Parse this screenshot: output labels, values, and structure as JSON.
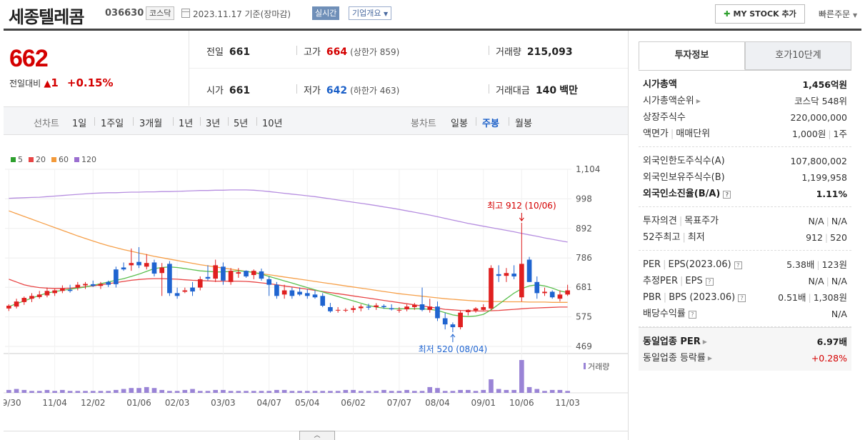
{
  "header": {
    "company": "세종텔레콤",
    "code": "036630",
    "market": "코스닥",
    "date": "2023.11.17 기준(장마감)",
    "realtime": "실시간",
    "overview": "기업개요",
    "mystock": "MY STOCK 추가",
    "quick_order": "빠른주문"
  },
  "price": {
    "current": "662",
    "change_label": "전일대비",
    "change_value": "1",
    "change_pct": "+0.15%"
  },
  "stats": {
    "prev_label": "전일",
    "prev": "661",
    "high_label": "고가",
    "high": "664",
    "upper_limit": "(상한가 859)",
    "volume_label": "거래량",
    "volume": "215,093",
    "open_label": "시가",
    "open": "661",
    "low_label": "저가",
    "low": "642",
    "lower_limit": "(하한가 463)",
    "amount_label": "거래대금",
    "amount": "140",
    "amount_unit": "백만"
  },
  "range_bar": {
    "line_label": "선차트",
    "ranges": [
      "1일",
      "1주일",
      "3개월",
      "1년",
      "3년",
      "5년",
      "10년"
    ],
    "candle_label": "봉차트",
    "candles": [
      "일봉",
      "주봉",
      "월봉"
    ],
    "active_candle": "주봉"
  },
  "chart_data": {
    "type": "candlestick",
    "legend": [
      {
        "name": "5",
        "color": "#2ea02e"
      },
      {
        "name": "20",
        "color": "#e84545"
      },
      {
        "name": "60",
        "color": "#f39a3a"
      },
      {
        "name": "120",
        "color": "#9b6fd0"
      }
    ],
    "y_ticks": [
      "1,104",
      "998",
      "892",
      "786",
      "681",
      "575",
      "469"
    ],
    "ylim": [
      469,
      1104
    ],
    "x_labels": [
      "09/30",
      "11/04",
      "12/02",
      "01/06",
      "02/03",
      "03/03",
      "04/07",
      "05/04",
      "06/02",
      "07/07",
      "08/04",
      "09/01",
      "10/06",
      "11/03"
    ],
    "high_annotation": "최고 912 (10/06)",
    "low_annotation": "최저 520 (08/04)",
    "volume_label": "거래량",
    "candles": [
      [
        605,
        620,
        596,
        615
      ],
      [
        612,
        640,
        605,
        630
      ],
      [
        628,
        648,
        618,
        643
      ],
      [
        640,
        660,
        628,
        650
      ],
      [
        646,
        668,
        640,
        655
      ],
      [
        652,
        680,
        645,
        668
      ],
      [
        660,
        675,
        650,
        670
      ],
      [
        668,
        688,
        660,
        676
      ],
      [
        672,
        690,
        662,
        668
      ],
      [
        680,
        700,
        670,
        690
      ],
      [
        688,
        700,
        675,
        693
      ],
      [
        692,
        705,
        682,
        686
      ],
      [
        686,
        700,
        675,
        693
      ],
      [
        700,
        705,
        682,
        690
      ],
      [
        745,
        755,
        680,
        692
      ],
      [
        752,
        770,
        740,
        745
      ],
      [
        760,
        820,
        740,
        768
      ],
      [
        772,
        825,
        750,
        760
      ],
      [
        755,
        800,
        745,
        768
      ],
      [
        770,
        780,
        720,
        730
      ],
      [
        732,
        768,
        650,
        752
      ],
      [
        765,
        775,
        650,
        660
      ],
      [
        660,
        680,
        640,
        650
      ],
      [
        665,
        680,
        660,
        670
      ],
      [
        680,
        700,
        650,
        666
      ],
      [
        680,
        720,
        670,
        710
      ],
      [
        718,
        760,
        705,
        712
      ],
      [
        712,
        780,
        700,
        760
      ],
      [
        755,
        770,
        690,
        705
      ],
      [
        700,
        750,
        690,
        740
      ],
      [
        730,
        750,
        715,
        735
      ],
      [
        740,
        742,
        715,
        720
      ],
      [
        725,
        745,
        710,
        740
      ],
      [
        738,
        748,
        705,
        712
      ],
      [
        710,
        720,
        650,
        690
      ],
      [
        690,
        700,
        640,
        650
      ],
      [
        655,
        690,
        640,
        670
      ],
      [
        670,
        680,
        640,
        650
      ],
      [
        665,
        680,
        650,
        655
      ],
      [
        660,
        675,
        640,
        650
      ],
      [
        655,
        670,
        640,
        645
      ],
      [
        650,
        660,
        610,
        615
      ],
      [
        610,
        625,
        590,
        595
      ],
      [
        600,
        610,
        590,
        600
      ],
      [
        598,
        606,
        592,
        600
      ],
      [
        600,
        615,
        590,
        606
      ],
      [
        606,
        620,
        595,
        612
      ],
      [
        612,
        622,
        600,
        608
      ],
      [
        610,
        624,
        600,
        616
      ],
      [
        614,
        620,
        604,
        610
      ],
      [
        606,
        620,
        598,
        602
      ],
      [
        598,
        610,
        590,
        600
      ],
      [
        602,
        620,
        595,
        612
      ],
      [
        610,
        625,
        600,
        618
      ],
      [
        620,
        680,
        595,
        600
      ],
      [
        600,
        640,
        590,
        612
      ],
      [
        612,
        630,
        560,
        570
      ],
      [
        570,
        590,
        530,
        548
      ],
      [
        548,
        555,
        520,
        538
      ],
      [
        538,
        598,
        530,
        590
      ],
      [
        592,
        602,
        580,
        600
      ],
      [
        598,
        610,
        590,
        605
      ],
      [
        600,
        620,
        598,
        610
      ],
      [
        605,
        760,
        600,
        750
      ],
      [
        728,
        760,
        700,
        722
      ],
      [
        722,
        750,
        700,
        732
      ],
      [
        730,
        760,
        710,
        720
      ],
      [
        645,
        912,
        630,
        765
      ],
      [
        780,
        790,
        700,
        700
      ],
      [
        700,
        720,
        640,
        660
      ],
      [
        660,
        680,
        650,
        665
      ],
      [
        665,
        670,
        640,
        645
      ],
      [
        640,
        670,
        630,
        655
      ],
      [
        655,
        690,
        650,
        670
      ]
    ],
    "volumes": [
      3,
      4,
      3,
      2,
      2,
      3,
      2,
      3,
      2,
      2,
      2,
      2,
      2,
      2,
      3,
      4,
      5,
      5,
      6,
      5,
      3,
      2,
      2,
      3,
      4,
      2,
      2,
      3,
      3,
      2,
      2,
      2,
      2,
      2,
      2,
      3,
      3,
      2,
      2,
      2,
      2,
      2,
      2,
      2,
      3,
      3,
      2,
      2,
      2,
      3,
      2,
      2,
      3,
      2,
      2,
      6,
      5,
      2,
      2,
      3,
      3,
      2,
      3,
      14,
      4,
      3,
      3,
      34,
      6,
      4,
      2,
      3,
      3,
      2
    ],
    "ma120": [
      1000,
      1001,
      1002,
      1003,
      1004,
      1006,
      1008,
      1010,
      1012,
      1014,
      1016,
      1018,
      1019,
      1020,
      1020,
      1021,
      1022,
      1022,
      1023,
      1023,
      1024,
      1024,
      1025,
      1026,
      1027,
      1028,
      1028,
      1029,
      1029,
      1030,
      1030,
      1030,
      1029,
      1027,
      1024,
      1021,
      1018,
      1015,
      1012,
      1009,
      1006,
      1002,
      998,
      994,
      990,
      986,
      982,
      978,
      974,
      969,
      965,
      960,
      955,
      950,
      945,
      940,
      934,
      928,
      922,
      916,
      910,
      905,
      900,
      895,
      890,
      885,
      880,
      874,
      869,
      864,
      858,
      853,
      848,
      843
    ],
    "ma60": [
      955,
      945,
      935,
      925,
      915,
      905,
      895,
      885,
      875,
      865,
      856,
      847,
      838,
      830,
      823,
      816,
      810,
      804,
      798,
      792,
      787,
      782,
      777,
      772,
      767,
      762,
      758,
      754,
      750,
      746,
      742,
      738,
      734,
      730,
      726,
      722,
      718,
      714,
      710,
      706,
      702,
      698,
      694,
      690,
      686,
      682,
      678,
      674,
      670,
      666,
      662,
      658,
      655,
      652,
      649,
      646,
      643,
      640,
      638,
      636,
      634,
      632,
      631,
      630,
      630,
      629,
      629,
      629,
      628,
      628,
      628,
      627,
      627,
      627
    ],
    "ma20": [
      710,
      700,
      690,
      684,
      680,
      678,
      677,
      677,
      678,
      680,
      683,
      686,
      690,
      694,
      698,
      702,
      706,
      709,
      711,
      712,
      712,
      711,
      710,
      708,
      706,
      705,
      704,
      703,
      703,
      703,
      703,
      702,
      700,
      697,
      694,
      690,
      686,
      682,
      678,
      674,
      670,
      666,
      662,
      658,
      654,
      650,
      646,
      642,
      638,
      634,
      630,
      626,
      622,
      618,
      614,
      610,
      606,
      602,
      600,
      598,
      597,
      596,
      596,
      597,
      598,
      600,
      602,
      604,
      606,
      607,
      608,
      609,
      610,
      610
    ],
    "ma5": [
      612,
      622,
      632,
      642,
      652,
      660,
      666,
      670,
      674,
      678,
      682,
      688,
      694,
      700,
      706,
      712,
      720,
      728,
      738,
      748,
      752,
      754,
      752,
      748,
      744,
      740,
      738,
      736,
      736,
      738,
      740,
      738,
      734,
      728,
      720,
      712,
      704,
      696,
      688,
      680,
      672,
      664,
      656,
      648,
      640,
      632,
      624,
      616,
      610,
      606,
      604,
      604,
      604,
      604,
      604,
      602,
      598,
      590,
      582,
      578,
      576,
      578,
      584,
      600,
      620,
      640,
      660,
      676,
      686,
      690,
      686,
      678,
      668,
      662
    ]
  },
  "side": {
    "tab_on": "투자정보",
    "tab_off": "호가10단계",
    "market_cap_label": "시가총액",
    "market_cap": "1,456억원",
    "rank_label": "시가총액순위",
    "rank": "코스닥 548위",
    "shares_label": "상장주식수",
    "shares": "220,000,000",
    "par_label": "액면가",
    "unit_label": "매매단위",
    "par": "1,000원",
    "unit": "1주",
    "foreign_limit_label": "외국인한도주식수(A)",
    "foreign_limit": "107,800,002",
    "foreign_hold_label": "외국인보유주식수(B)",
    "foreign_hold": "1,199,958",
    "foreign_ratio_label": "외국인소진율(B/A)",
    "foreign_ratio": "1.11%",
    "opinion_label": "투자의견",
    "target_label": "목표주가",
    "opinion": "N/A",
    "target": "N/A",
    "w52_high_label": "52주최고",
    "w52_low_label": "최저",
    "w52_high": "912",
    "w52_low": "520",
    "per_label": "PER",
    "eps_label": "EPS(2023.06)",
    "per": "5.38배",
    "eps": "123원",
    "est_per_label": "추정PER",
    "est_eps_label": "EPS",
    "est_per": "N/A",
    "est_eps": "N/A",
    "pbr_label": "PBR",
    "bps_label": "BPS (2023.06)",
    "pbr": "0.51배",
    "bps": "1,308원",
    "div_label": "배당수익률",
    "div": "N/A",
    "ind_per_label": "동일업종 PER",
    "ind_per": "6.97배",
    "ind_chg_label": "동일업종 등락률",
    "ind_chg": "+0.28%"
  }
}
